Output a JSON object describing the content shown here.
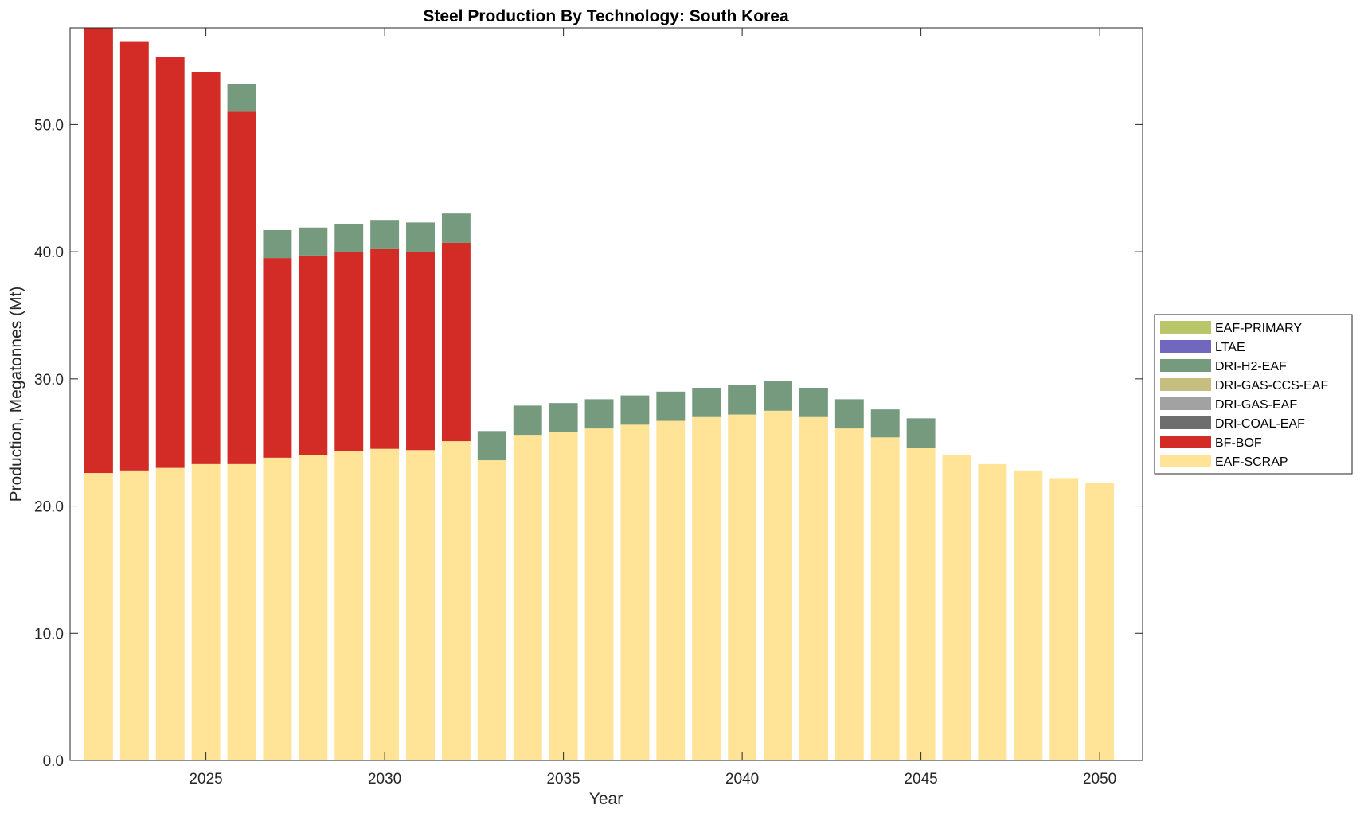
{
  "chart_data": {
    "type": "bar",
    "stacked": true,
    "title": "Steel Production By Technology: South Korea",
    "xlabel": "Year",
    "ylabel": "Production, Megatonnes (Mt)",
    "xlim": [
      2021.2,
      2051.2
    ],
    "ylim": [
      0,
      57.6
    ],
    "xticks": [
      2025,
      2030,
      2035,
      2040,
      2045,
      2050
    ],
    "yticks": [
      0,
      10,
      20,
      30,
      40,
      50
    ],
    "ytick_labels": [
      "0.0",
      "10.0",
      "20.0",
      "30.0",
      "40.0",
      "50.0"
    ],
    "grid": false,
    "legend_position": "right",
    "x": [
      2022,
      2023,
      2024,
      2025,
      2026,
      2027,
      2028,
      2029,
      2030,
      2031,
      2032,
      2033,
      2034,
      2035,
      2036,
      2037,
      2038,
      2039,
      2040,
      2041,
      2042,
      2043,
      2044,
      2045,
      2046,
      2047,
      2048,
      2049,
      2050
    ],
    "series": [
      {
        "name": "EAF-SCRAP",
        "color": "#FFE497",
        "values": [
          22.6,
          22.8,
          23.0,
          23.3,
          23.3,
          23.8,
          24.0,
          24.3,
          24.5,
          24.4,
          25.1,
          23.6,
          25.6,
          25.8,
          26.1,
          26.4,
          26.7,
          27.0,
          27.2,
          27.5,
          27.0,
          26.1,
          25.4,
          24.6,
          24.0,
          23.3,
          22.8,
          22.2,
          21.8
        ]
      },
      {
        "name": "BF-BOF",
        "color": "#D32B25",
        "values": [
          35.0,
          33.7,
          32.3,
          30.8,
          27.7,
          15.7,
          15.7,
          15.7,
          15.7,
          15.6,
          15.6,
          0,
          0,
          0,
          0,
          0,
          0,
          0,
          0,
          0,
          0,
          0,
          0,
          0,
          0,
          0,
          0,
          0,
          0
        ]
      },
      {
        "name": "DRI-COAL-EAF",
        "color": "#6E6E6E",
        "values": [
          0,
          0,
          0,
          0,
          0,
          0,
          0,
          0,
          0,
          0,
          0,
          0,
          0,
          0,
          0,
          0,
          0,
          0,
          0,
          0,
          0,
          0,
          0,
          0,
          0,
          0,
          0,
          0,
          0
        ]
      },
      {
        "name": "DRI-GAS-EAF",
        "color": "#A2A2A2",
        "values": [
          0,
          0,
          0,
          0,
          0,
          0,
          0,
          0,
          0,
          0,
          0,
          0,
          0,
          0,
          0,
          0,
          0,
          0,
          0,
          0,
          0,
          0,
          0,
          0,
          0,
          0,
          0,
          0,
          0
        ]
      },
      {
        "name": "DRI-GAS-CCS-EAF",
        "color": "#C5BE7E",
        "values": [
          0,
          0,
          0,
          0,
          0,
          0,
          0,
          0,
          0,
          0,
          0,
          0,
          0,
          0,
          0,
          0,
          0,
          0,
          0,
          0,
          0,
          0,
          0,
          0,
          0,
          0,
          0,
          0,
          0
        ]
      },
      {
        "name": "DRI-H2-EAF",
        "color": "#759A7D",
        "values": [
          0,
          0,
          0,
          0,
          2.2,
          2.2,
          2.2,
          2.2,
          2.3,
          2.3,
          2.3,
          2.3,
          2.3,
          2.3,
          2.3,
          2.3,
          2.3,
          2.3,
          2.3,
          2.3,
          2.3,
          2.3,
          2.2,
          2.3,
          0,
          0,
          0,
          0,
          0
        ]
      },
      {
        "name": "LTAE",
        "color": "#7267BF",
        "values": [
          0,
          0,
          0,
          0,
          0,
          0,
          0,
          0,
          0,
          0,
          0,
          0,
          0,
          0,
          0,
          0,
          0,
          0,
          0,
          0,
          0,
          0,
          0,
          0,
          0,
          0,
          0,
          0,
          0
        ]
      },
      {
        "name": "EAF-PRIMARY",
        "color": "#BBC56A",
        "values": [
          0,
          0,
          0,
          0,
          0,
          0,
          0,
          0,
          0,
          0,
          0,
          0,
          0,
          0,
          0,
          0,
          0,
          0,
          0,
          0,
          0,
          0,
          0,
          0,
          0,
          0,
          0,
          0,
          0
        ]
      }
    ]
  }
}
